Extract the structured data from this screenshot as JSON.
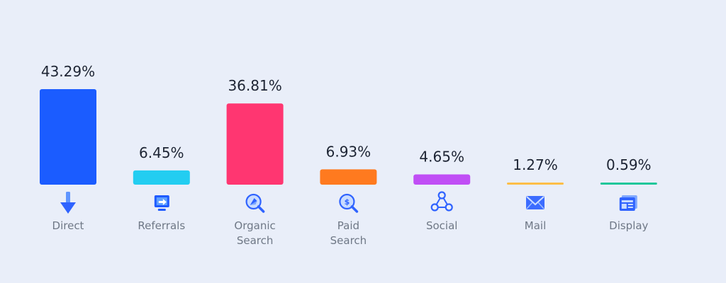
{
  "chart_data": {
    "type": "bar",
    "title": "",
    "xlabel": "",
    "ylabel": "",
    "ylim": [
      0,
      43.29
    ],
    "grid": false,
    "categories": [
      "Direct",
      "Referrals",
      "Organic Search",
      "Paid Search",
      "Social",
      "Mail",
      "Display"
    ],
    "category_label_lines": [
      [
        "Direct"
      ],
      [
        "Referrals"
      ],
      [
        "Organic",
        "Search"
      ],
      [
        "Paid",
        "Search"
      ],
      [
        "Social"
      ],
      [
        "Mail"
      ],
      [
        "Display"
      ]
    ],
    "values": [
      43.29,
      6.45,
      36.81,
      6.93,
      4.65,
      1.27,
      0.59
    ],
    "value_labels": [
      "43.29%",
      "6.45%",
      "36.81%",
      "6.93%",
      "4.65%",
      "1.27%",
      "0.59%"
    ],
    "colors": [
      "#1b5cff",
      "#23cdf1",
      "#ff3671",
      "#ff7a1f",
      "#c04ef5",
      "#ffbe47",
      "#20c79a"
    ],
    "icons": [
      "arrow-down-icon",
      "referral-screen-icon",
      "compass-search-icon",
      "dollar-search-icon",
      "social-share-icon",
      "mail-envelope-icon",
      "display-browser-icon"
    ]
  }
}
